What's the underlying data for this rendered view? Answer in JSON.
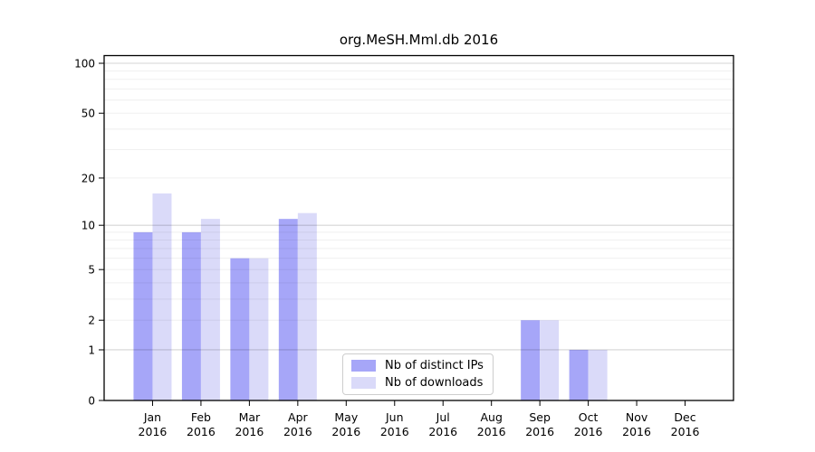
{
  "title": "org.MeSH.Mml.db 2016",
  "colors": {
    "ips": "#a6a6f8",
    "downloads": "#dadaf9",
    "grid_minor": "rgba(0,0,0,0.065)",
    "grid_major": "rgba(0,0,0,0.17)",
    "axis": "#000000",
    "legend_border": "#cdcdcd"
  },
  "legend": {
    "items": [
      {
        "label": "Nb of distinct IPs",
        "color_key": "ips"
      },
      {
        "label": "Nb of downloads",
        "color_key": "downloads"
      }
    ]
  },
  "chart_data": {
    "type": "bar",
    "title": "org.MeSH.Mml.db 2016",
    "xlabel": "",
    "ylabel": "",
    "categories": [
      "Jan 2016",
      "Feb 2016",
      "Mar 2016",
      "Apr 2016",
      "May 2016",
      "Jun 2016",
      "Jul 2016",
      "Aug 2016",
      "Sep 2016",
      "Oct 2016",
      "Nov 2016",
      "Dec 2016"
    ],
    "series": [
      {
        "name": "Nb of distinct IPs",
        "color_key": "ips",
        "values": [
          9,
          9,
          6,
          11,
          0,
          0,
          0,
          0,
          2,
          1,
          0,
          0
        ]
      },
      {
        "name": "Nb of downloads",
        "color_key": "downloads",
        "values": [
          16,
          11,
          6,
          12,
          0,
          0,
          0,
          0,
          2,
          1,
          0,
          0
        ]
      }
    ],
    "yscale": "log1p",
    "ylim": [
      0,
      100
    ],
    "yticks": [
      0,
      1,
      2,
      5,
      10,
      20,
      50,
      100
    ],
    "grid": true,
    "grid_major_values": [
      1,
      10,
      100
    ],
    "grid_minor_values": [
      2,
      3,
      4,
      5,
      6,
      7,
      8,
      9,
      20,
      30,
      40,
      50,
      60,
      70,
      80,
      90
    ],
    "legend_position": "lower center"
  }
}
